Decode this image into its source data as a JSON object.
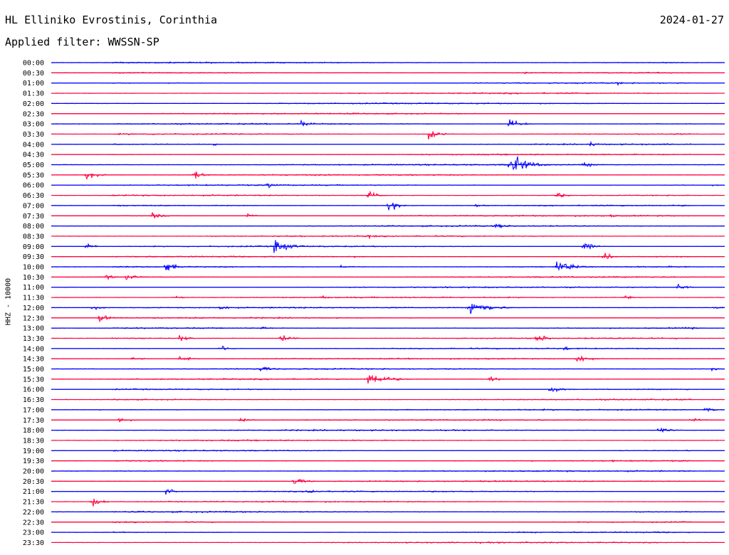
{
  "header": {
    "station": "HL Elliniko Evrostinis, Corinthia",
    "date": "2024-01-27",
    "filter": "Applied filter: WWSSN-SP"
  },
  "chart_data": {
    "type": "line",
    "title": "HL Elliniko Evrostinis, Corinthia",
    "subtitle": "Applied filter: WWSSN-SP",
    "ylabel": "HHZ - 10000",
    "xlabel": "",
    "colors": [
      "#0000ff",
      "#ff0040"
    ],
    "categories": [
      "00:00",
      "00:30",
      "01:00",
      "01:30",
      "02:00",
      "02:30",
      "03:00",
      "03:30",
      "04:00",
      "04:30",
      "05:00",
      "05:30",
      "06:00",
      "06:30",
      "07:00",
      "07:30",
      "08:00",
      "08:30",
      "09:00",
      "09:30",
      "10:00",
      "10:30",
      "11:00",
      "11:30",
      "12:00",
      "12:30",
      "13:00",
      "13:30",
      "14:00",
      "14:30",
      "15:00",
      "15:30",
      "16:00",
      "16:30",
      "17:00",
      "17:30",
      "18:00",
      "18:30",
      "19:00",
      "19:30",
      "20:00",
      "20:30",
      "21:00",
      "21:30",
      "22:00",
      "22:30",
      "23:00",
      "23:30"
    ],
    "events": [
      {
        "row": "00:30",
        "x": 0.7,
        "amp": 3
      },
      {
        "row": "01:00",
        "x": 0.84,
        "amp": 4
      },
      {
        "row": "03:00",
        "x": 0.37,
        "amp": 10
      },
      {
        "row": "03:00",
        "x": 0.68,
        "amp": 14
      },
      {
        "row": "03:30",
        "x": 0.56,
        "amp": 12
      },
      {
        "row": "04:00",
        "x": 0.24,
        "amp": 4
      },
      {
        "row": "04:00",
        "x": 0.8,
        "amp": 6
      },
      {
        "row": "05:00",
        "x": 0.68,
        "amp": 26
      },
      {
        "row": "05:00",
        "x": 0.79,
        "amp": 8
      },
      {
        "row": "05:30",
        "x": 0.05,
        "amp": 13
      },
      {
        "row": "05:30",
        "x": 0.21,
        "amp": 12
      },
      {
        "row": "06:00",
        "x": 0.32,
        "amp": 8
      },
      {
        "row": "06:00",
        "x": 0.98,
        "amp": 4
      },
      {
        "row": "06:30",
        "x": 0.47,
        "amp": 12
      },
      {
        "row": "06:30",
        "x": 0.75,
        "amp": 8
      },
      {
        "row": "07:00",
        "x": 0.5,
        "amp": 14
      },
      {
        "row": "07:00",
        "x": 0.63,
        "amp": 5
      },
      {
        "row": "07:30",
        "x": 0.15,
        "amp": 8
      },
      {
        "row": "07:30",
        "x": 0.29,
        "amp": 6
      },
      {
        "row": "07:30",
        "x": 0.83,
        "amp": 4
      },
      {
        "row": "08:00",
        "x": 0.66,
        "amp": 9
      },
      {
        "row": "08:30",
        "x": 0.47,
        "amp": 5
      },
      {
        "row": "09:00",
        "x": 0.05,
        "amp": 7
      },
      {
        "row": "09:00",
        "x": 0.33,
        "amp": 16
      },
      {
        "row": "09:00",
        "x": 0.79,
        "amp": 12
      },
      {
        "row": "09:30",
        "x": 0.45,
        "amp": 4
      },
      {
        "row": "09:30",
        "x": 0.82,
        "amp": 10
      },
      {
        "row": "10:00",
        "x": 0.17,
        "amp": 14
      },
      {
        "row": "10:00",
        "x": 0.43,
        "amp": 5
      },
      {
        "row": "10:00",
        "x": 0.75,
        "amp": 16
      },
      {
        "row": "10:30",
        "x": 0.08,
        "amp": 6
      },
      {
        "row": "10:30",
        "x": 0.11,
        "amp": 10
      },
      {
        "row": "11:00",
        "x": 0.93,
        "amp": 8
      },
      {
        "row": "11:30",
        "x": 0.18,
        "amp": 6
      },
      {
        "row": "11:30",
        "x": 0.4,
        "amp": 5
      },
      {
        "row": "11:30",
        "x": 0.85,
        "amp": 5
      },
      {
        "row": "12:00",
        "x": 0.06,
        "amp": 6
      },
      {
        "row": "12:00",
        "x": 0.25,
        "amp": 8
      },
      {
        "row": "12:00",
        "x": 0.62,
        "amp": 22
      },
      {
        "row": "12:00",
        "x": 0.98,
        "amp": 6
      },
      {
        "row": "12:30",
        "x": 0.07,
        "amp": 12
      },
      {
        "row": "13:00",
        "x": 0.31,
        "amp": 6
      },
      {
        "row": "13:00",
        "x": 0.94,
        "amp": 6
      },
      {
        "row": "13:30",
        "x": 0.19,
        "amp": 8
      },
      {
        "row": "13:30",
        "x": 0.34,
        "amp": 10
      },
      {
        "row": "13:30",
        "x": 0.72,
        "amp": 14
      },
      {
        "row": "14:00",
        "x": 0.25,
        "amp": 9
      },
      {
        "row": "14:00",
        "x": 0.76,
        "amp": 6
      },
      {
        "row": "14:30",
        "x": 0.12,
        "amp": 7
      },
      {
        "row": "14:30",
        "x": 0.19,
        "amp": 8
      },
      {
        "row": "14:30",
        "x": 0.78,
        "amp": 14
      },
      {
        "row": "15:00",
        "x": 0.31,
        "amp": 9
      },
      {
        "row": "15:00",
        "x": 0.98,
        "amp": 4
      },
      {
        "row": "15:30",
        "x": 0.47,
        "amp": 18
      },
      {
        "row": "15:30",
        "x": 0.65,
        "amp": 7
      },
      {
        "row": "16:00",
        "x": 0.74,
        "amp": 12
      },
      {
        "row": "17:00",
        "x": 0.97,
        "amp": 7
      },
      {
        "row": "17:30",
        "x": 0.1,
        "amp": 8
      },
      {
        "row": "17:30",
        "x": 0.28,
        "amp": 8
      },
      {
        "row": "17:30",
        "x": 0.95,
        "amp": 6
      },
      {
        "row": "18:00",
        "x": 0.9,
        "amp": 9
      },
      {
        "row": "19:30",
        "x": 0.83,
        "amp": 3
      },
      {
        "row": "20:30",
        "x": 0.36,
        "amp": 11
      },
      {
        "row": "21:00",
        "x": 0.17,
        "amp": 8
      },
      {
        "row": "21:00",
        "x": 0.38,
        "amp": 9
      },
      {
        "row": "21:30",
        "x": 0.06,
        "amp": 12
      }
    ]
  }
}
